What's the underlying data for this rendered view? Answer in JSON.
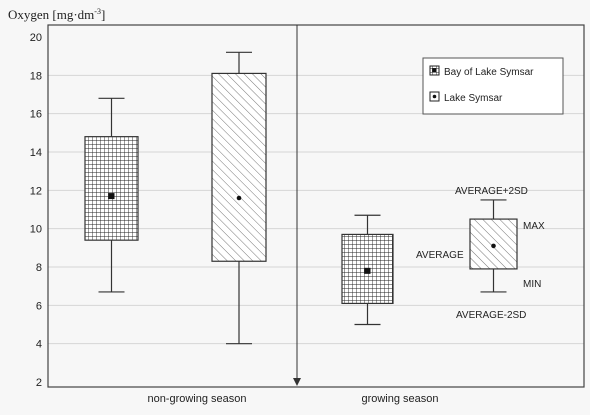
{
  "chart_data": {
    "type": "box",
    "ylabel": "Oxygen [mg·dm",
    "ylabel_sup": "-3",
    "ylabel_close": "]",
    "ylim": [
      2,
      20
    ],
    "yticks": [
      2,
      4,
      6,
      8,
      10,
      12,
      14,
      16,
      18,
      20
    ],
    "grid": true,
    "legend_position": "top-right",
    "categories": [
      "non-growing season",
      "growing season"
    ],
    "series": [
      {
        "name": "Bay of Lake Symsar",
        "pattern": "grid",
        "marker": "square",
        "values": [
          {
            "category": "non-growing season",
            "average": 11.7,
            "box_low": 9.4,
            "box_high": 14.8,
            "whisker_low": 6.7,
            "whisker_high": 16.8
          },
          {
            "category": "growing season",
            "average": 7.8,
            "box_low": 6.1,
            "box_high": 9.7,
            "whisker_low": 5.0,
            "whisker_high": 10.7
          }
        ]
      },
      {
        "name": "Lake Symsar",
        "pattern": "hatch",
        "marker": "dot",
        "values": [
          {
            "category": "non-growing season",
            "average": 11.6,
            "box_low": 8.3,
            "box_high": 18.1,
            "whisker_low": 4.0,
            "whisker_high": 19.2
          }
        ]
      }
    ],
    "key_diagram": {
      "average": 9.1,
      "box_low": 7.9,
      "box_high": 10.5,
      "whisker_low": 6.7,
      "whisker_high": 11.5,
      "labels": {
        "top": "AVERAGE+2SD",
        "max": "MAX",
        "average": "AVERAGE",
        "min": "MIN",
        "bottom": "AVERAGE-2SD"
      }
    },
    "colors": {
      "frame": "#444444",
      "grid": "#d6d6d6",
      "box_fill": "#ffffff",
      "box_line": "#333333",
      "background": "#f7f7f7"
    }
  }
}
